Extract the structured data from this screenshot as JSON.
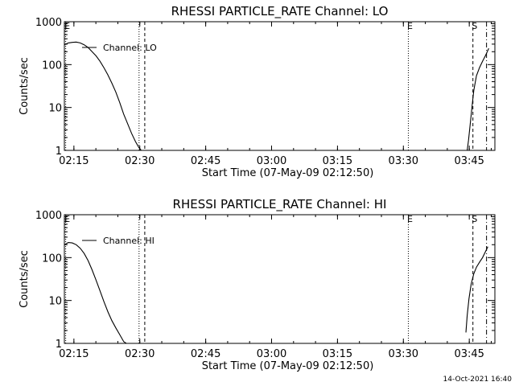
{
  "footer_timestamp": "14-Oct-2021 16:40",
  "chart_data": [
    {
      "type": "line",
      "title": "RHESSI PARTICLE_RATE Channel: LO",
      "xlabel": "Start Time (07-May-09 02:12:50)",
      "ylabel": "Counts/sec",
      "legend": "Channel: LO",
      "y_scale": "log",
      "xlim_minutes_after_start": [
        0,
        98
      ],
      "ylim": [
        1,
        1000
      ],
      "x_tick_labels": [
        "02:15",
        "02:30",
        "02:45",
        "03:00",
        "03:15",
        "03:30",
        "03:45"
      ],
      "x_tick_minutes": [
        2.17,
        17.17,
        32.17,
        47.17,
        62.17,
        77.17,
        92.17
      ],
      "y_tick_labels": [
        "1",
        "10",
        "100",
        "1000"
      ],
      "y_tick_values": [
        1,
        10,
        100,
        1000
      ],
      "markers": [
        {
          "label": "E",
          "minute": 0.3,
          "style": "dotted"
        },
        {
          "label": "",
          "minute": 17.0,
          "style": "dotted"
        },
        {
          "label": "",
          "minute": 18.3,
          "style": "dashed"
        },
        {
          "label": "E",
          "minute": 78.3,
          "style": "dotted"
        },
        {
          "label": "S",
          "minute": 93.0,
          "style": "dashed"
        },
        {
          "label": "",
          "minute": 96.1,
          "style": "dashdot"
        }
      ],
      "segments": [
        {
          "x": [
            0,
            0.9,
            1.8,
            2.7,
            3.6,
            4.5,
            5.4,
            6.3,
            7.2,
            8.1,
            9.0,
            9.9,
            10.8,
            11.7,
            12.6,
            13.5,
            14.4,
            15.3,
            16.2,
            17.0,
            17.5
          ],
          "y": [
            290,
            320,
            330,
            335,
            320,
            290,
            250,
            200,
            160,
            120,
            85,
            58,
            37,
            23,
            13,
            7,
            4.2,
            2.5,
            1.6,
            1.15,
            1.0
          ]
        },
        {
          "x": [
            91.7,
            92.0,
            92.4,
            92.8,
            93.2,
            93.8,
            94.5,
            95.2,
            95.9,
            96.6
          ],
          "y": [
            1.0,
            1.7,
            4.2,
            10.5,
            25,
            55,
            85,
            120,
            165,
            240
          ]
        }
      ]
    },
    {
      "type": "line",
      "title": "RHESSI PARTICLE_RATE Channel: HI",
      "xlabel": "Start Time (07-May-09 02:12:50)",
      "ylabel": "Counts/sec",
      "legend": "Channel: HI",
      "y_scale": "log",
      "xlim_minutes_after_start": [
        0,
        98
      ],
      "ylim": [
        1,
        1000
      ],
      "x_tick_labels": [
        "02:15",
        "02:30",
        "02:45",
        "03:00",
        "03:15",
        "03:30",
        "03:45"
      ],
      "x_tick_minutes": [
        2.17,
        17.17,
        32.17,
        47.17,
        62.17,
        77.17,
        92.17
      ],
      "y_tick_labels": [
        "1",
        "10",
        "100",
        "1000"
      ],
      "y_tick_values": [
        1,
        10,
        100,
        1000
      ],
      "markers": [
        {
          "label": "E",
          "minute": 0.3,
          "style": "dotted"
        },
        {
          "label": "",
          "minute": 17.0,
          "style": "dotted"
        },
        {
          "label": "",
          "minute": 18.3,
          "style": "dashed"
        },
        {
          "label": "E",
          "minute": 78.3,
          "style": "dotted"
        },
        {
          "label": "S",
          "minute": 93.0,
          "style": "dashed"
        },
        {
          "label": "",
          "minute": 96.1,
          "style": "dashdot"
        }
      ],
      "segments": [
        {
          "x": [
            0,
            0.9,
            1.8,
            2.7,
            3.6,
            4.5,
            5.4,
            6.3,
            7.2,
            8.1,
            9.0,
            9.9,
            10.8,
            11.7,
            12.6,
            13.5,
            14.1
          ],
          "y": [
            200,
            225,
            220,
            200,
            165,
            125,
            85,
            52,
            30,
            17,
            9.5,
            5.5,
            3.4,
            2.3,
            1.6,
            1.1,
            1.0
          ]
        },
        {
          "x": [
            91.4,
            91.7,
            92.1,
            92.6,
            93.2,
            93.8,
            94.5,
            95.2,
            95.9,
            96.4
          ],
          "y": [
            1.8,
            4.5,
            11,
            24,
            42,
            60,
            78,
            100,
            140,
            180
          ]
        }
      ]
    }
  ]
}
